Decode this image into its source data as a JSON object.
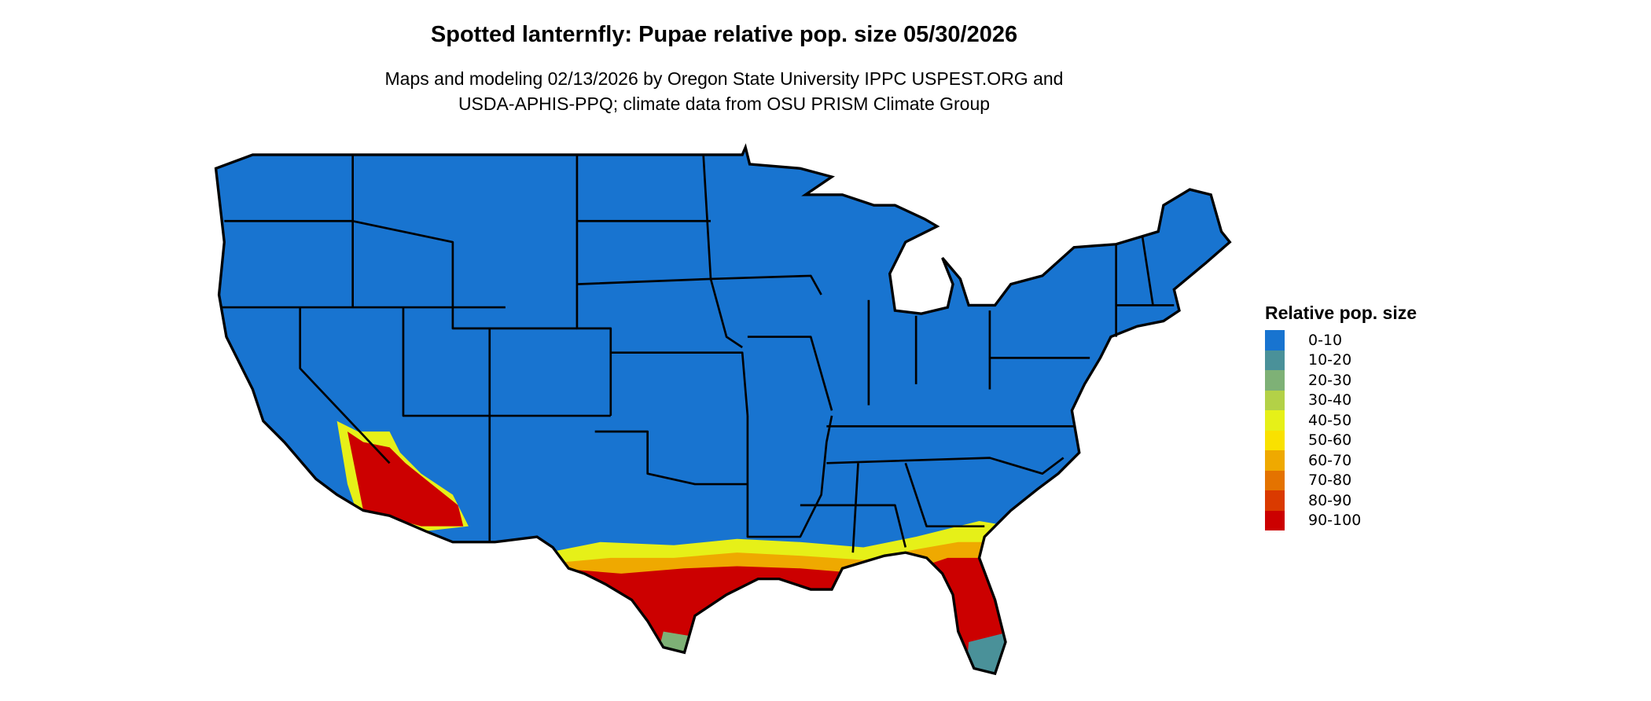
{
  "title": "Spotted lanternfly: Pupae relative pop. size 05/30/2026",
  "subtitle_line1": "Maps and modeling 02/13/2026 by Oregon State University IPPC USPEST.ORG and",
  "subtitle_line2": "USDA-APHIS-PPQ; climate data from OSU PRISM Climate Group",
  "legend": {
    "title": "Relative pop. size",
    "items": [
      {
        "label": "0-10",
        "color": "#1874D0"
      },
      {
        "label": "10-20",
        "color": "#4A9199"
      },
      {
        "label": "20-30",
        "color": "#7EB176"
      },
      {
        "label": "30-40",
        "color": "#B3D147"
      },
      {
        "label": "40-50",
        "color": "#E6F018"
      },
      {
        "label": "50-60",
        "color": "#F9E100"
      },
      {
        "label": "60-70",
        "color": "#EFA900"
      },
      {
        "label": "70-80",
        "color": "#E47300"
      },
      {
        "label": "80-90",
        "color": "#DA3A00"
      },
      {
        "label": "90-100",
        "color": "#CC0000"
      }
    ]
  }
}
